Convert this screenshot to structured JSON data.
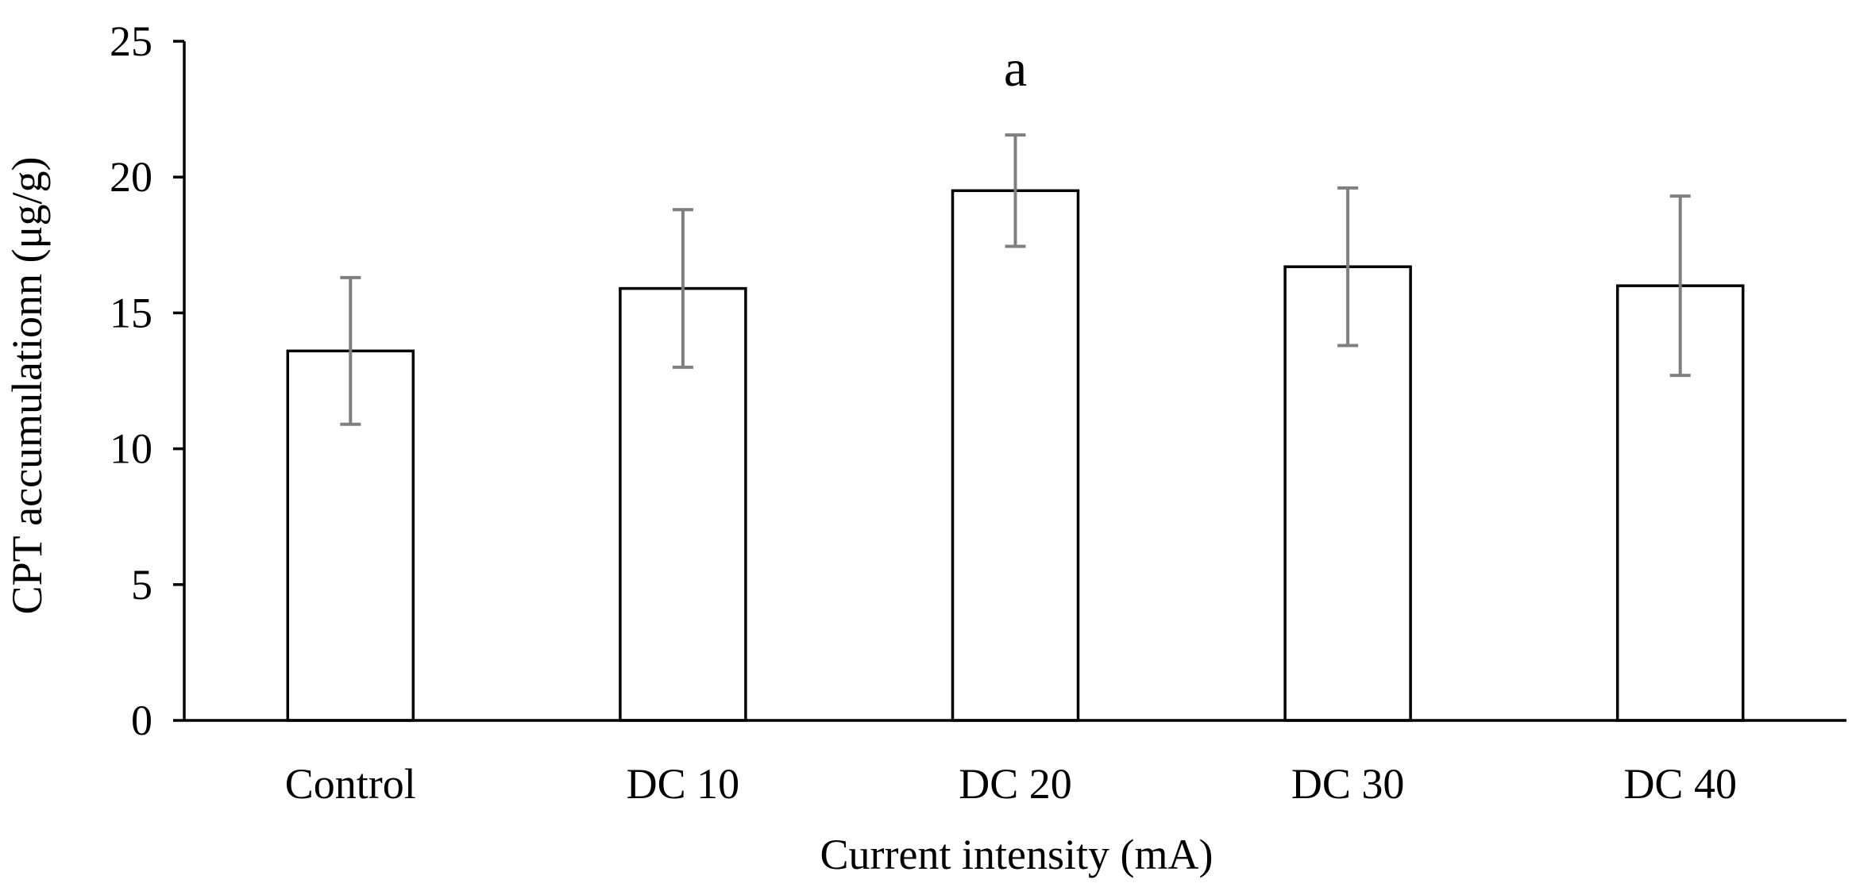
{
  "chart_data": {
    "type": "bar",
    "title": "",
    "xlabel": "Current intensity (mA)",
    "ylabel": "CPT accumulationn (μg/g)",
    "categories": [
      "Control",
      "DC 10",
      "DC 20",
      "DC 30",
      "DC 40"
    ],
    "values": [
      13.6,
      15.9,
      19.5,
      16.7,
      16.0
    ],
    "errors": [
      2.7,
      2.9,
      2.05,
      2.9,
      3.3
    ],
    "ylim": [
      0,
      25
    ],
    "yticks": [
      0,
      5,
      10,
      15,
      20,
      25
    ],
    "ytick_labels": [
      "0",
      "5",
      "10",
      "15",
      "20",
      "25"
    ],
    "grid": false,
    "legend": "none",
    "annotations": [
      {
        "text": "a",
        "category": "DC 20",
        "y": 24.0
      }
    ],
    "colors": {
      "bar_fill": "#ffffff",
      "bar_stroke": "#000000",
      "error_bar": "#7f7f7f",
      "axis": "#000000"
    }
  }
}
